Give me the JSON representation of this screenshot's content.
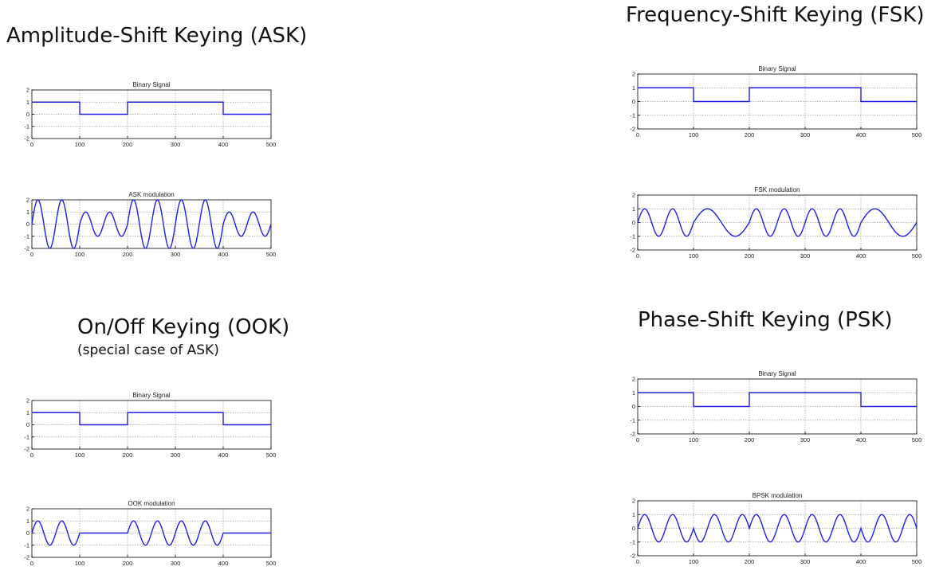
{
  "headings": {
    "ask": "Amplitude-Shift Keying (ASK)",
    "fsk": "Frequency-Shift Keying (FSK)",
    "ook": "On/Off Keying (OOK)",
    "ook_sub": "(special case of ASK)",
    "psk": "Phase-Shift Keying (PSK)"
  },
  "colors": {
    "trace": "#1f1fe0",
    "axis": "#000000",
    "grid": "#9a9a9a"
  },
  "chart_data": [
    {
      "id": "ask-binary",
      "type": "line",
      "title": "Binary Signal",
      "xlim": [
        0,
        500
      ],
      "ylim": [
        -2,
        2
      ],
      "grid": true,
      "xticks": [
        0,
        100,
        200,
        300,
        400,
        500
      ],
      "yticks": [
        2,
        1,
        0,
        -1,
        -2
      ],
      "series": [
        {
          "kind": "binary",
          "bits": [
            1,
            0,
            1,
            1,
            0
          ]
        }
      ]
    },
    {
      "id": "ask-mod",
      "type": "line",
      "title": "ASK modulation",
      "xlim": [
        0,
        500
      ],
      "ylim": [
        -2,
        2
      ],
      "grid": true,
      "xticks": [
        0,
        100,
        200,
        300,
        400,
        500
      ],
      "yticks": [
        2,
        1,
        0,
        -1,
        -2
      ],
      "series": [
        {
          "kind": "ask",
          "bits": [
            1,
            0,
            1,
            1,
            0
          ],
          "amp_one": 2,
          "amp_zero": 1,
          "cycles_per_bit": 2
        }
      ]
    },
    {
      "id": "fsk-binary",
      "type": "line",
      "title": "Binary Signal",
      "xlim": [
        0,
        500
      ],
      "ylim": [
        -2,
        2
      ],
      "grid": true,
      "xticks": [
        0,
        100,
        200,
        300,
        400,
        500
      ],
      "yticks": [
        2,
        1,
        0,
        -1,
        -2
      ],
      "series": [
        {
          "kind": "binary",
          "bits": [
            1,
            0,
            1,
            1,
            0
          ]
        }
      ]
    },
    {
      "id": "fsk-mod",
      "type": "line",
      "title": "FSK modulation",
      "xlim": [
        0,
        500
      ],
      "ylim": [
        -2,
        2
      ],
      "grid": true,
      "xticks": [
        0,
        100,
        200,
        300,
        400,
        500
      ],
      "yticks": [
        2,
        1,
        0,
        -1,
        -2
      ],
      "series": [
        {
          "kind": "fsk",
          "bits": [
            1,
            0,
            1,
            1,
            0
          ],
          "cycles_one": 2,
          "cycles_zero": 1,
          "amplitude": 1
        }
      ]
    },
    {
      "id": "ook-binary",
      "type": "line",
      "title": "Binary Signal",
      "xlim": [
        0,
        500
      ],
      "ylim": [
        -2,
        2
      ],
      "grid": true,
      "xticks": [
        0,
        100,
        200,
        300,
        400,
        500
      ],
      "yticks": [
        2,
        1,
        0,
        -1,
        -2
      ],
      "series": [
        {
          "kind": "binary",
          "bits": [
            1,
            0,
            1,
            1,
            0
          ]
        }
      ]
    },
    {
      "id": "ook-mod",
      "type": "line",
      "title": "OOK modulation",
      "xlim": [
        0,
        500
      ],
      "ylim": [
        -2,
        2
      ],
      "grid": true,
      "xticks": [
        0,
        100,
        200,
        300,
        400,
        500
      ],
      "yticks": [
        2,
        1,
        0,
        -1,
        -2
      ],
      "series": [
        {
          "kind": "ook",
          "bits": [
            1,
            0,
            1,
            1,
            0
          ],
          "amplitude": 1,
          "cycles_per_bit": 2
        }
      ]
    },
    {
      "id": "psk-binary",
      "type": "line",
      "title": "Binary Signal",
      "xlim": [
        0,
        500
      ],
      "ylim": [
        -2,
        2
      ],
      "grid": true,
      "xticks": [
        0,
        100,
        200,
        300,
        400,
        500
      ],
      "yticks": [
        2,
        1,
        0,
        -1,
        -2
      ],
      "series": [
        {
          "kind": "binary",
          "bits": [
            1,
            0,
            1,
            1,
            0
          ]
        }
      ]
    },
    {
      "id": "psk-mod",
      "type": "line",
      "title": "BPSK modulation",
      "xlim": [
        0,
        500
      ],
      "ylim": [
        -2,
        2
      ],
      "grid": true,
      "xticks": [
        0,
        100,
        200,
        300,
        400,
        500
      ],
      "yticks": [
        2,
        1,
        0,
        -1,
        -2
      ],
      "series": [
        {
          "kind": "bpsk",
          "bits": [
            1,
            0,
            1,
            1,
            0
          ],
          "amplitude": 1,
          "cycles_per_bit": 2
        }
      ]
    }
  ]
}
